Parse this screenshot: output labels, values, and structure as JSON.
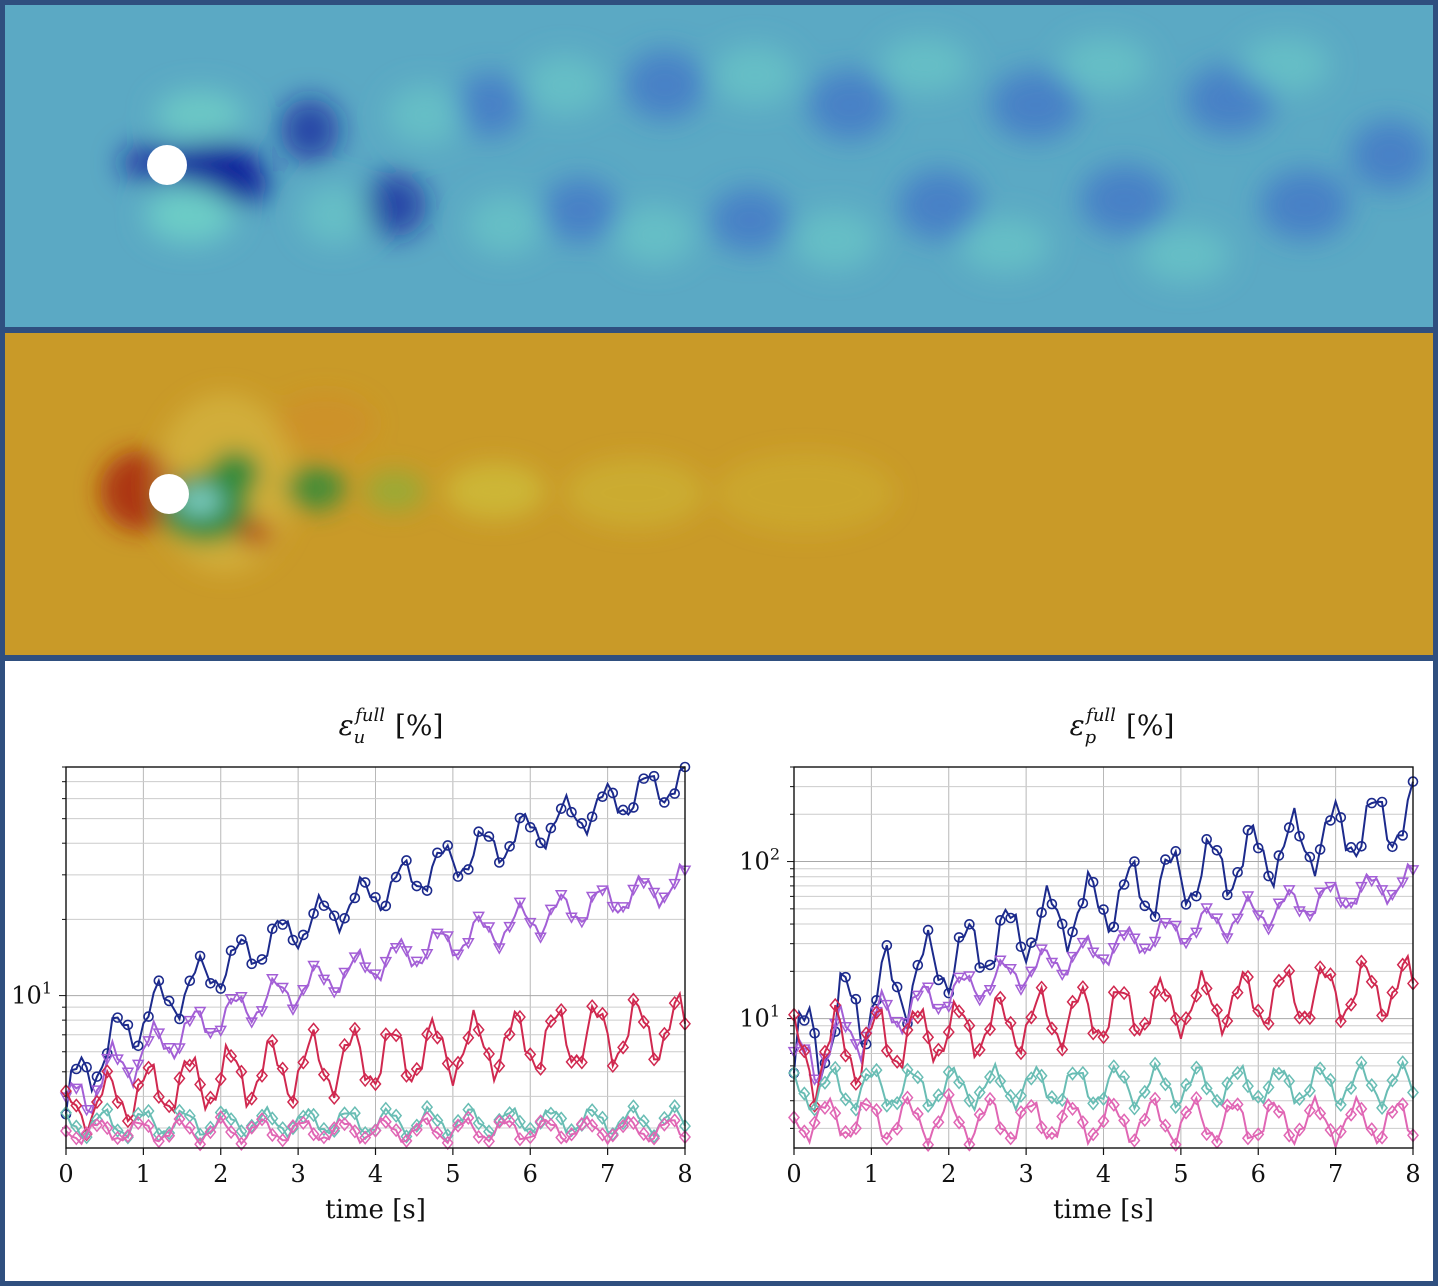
{
  "chart_data": [
    {
      "type": "line",
      "title": "ε_u^full [%]",
      "title_main": "ε",
      "title_sub": "u",
      "title_sup": "full",
      "title_unit": "[%]",
      "xlabel": "time [s]",
      "ylabel": "",
      "xlim": [
        0,
        8
      ],
      "ylim": [
        2.5,
        80
      ],
      "yscale": "log",
      "xticks": [
        "0",
        "1",
        "2",
        "3",
        "4",
        "5",
        "6",
        "7",
        "8"
      ],
      "yticks": [
        {
          "base": "10",
          "exp": "1"
        }
      ],
      "grid": true,
      "series": [
        {
          "color": "#1c2a8c",
          "marker": "circle",
          "start": 3.4,
          "end": 72,
          "amp": 0.07,
          "start_amp": 0.1
        },
        {
          "color": "#a35fd6",
          "marker": "triangle-down",
          "start": 3.2,
          "end": 28,
          "amp": 0.06,
          "start_amp": 0.1
        },
        {
          "color": "#d0284f",
          "marker": "diamond",
          "start": 3.3,
          "end": 7.5,
          "amp": 0.11,
          "start_amp": 0.08
        },
        {
          "color": "#69bdb4",
          "marker": "diamond",
          "start": 3.1,
          "end": 3.2,
          "amp": 0.045,
          "start_amp": 0.05
        },
        {
          "color": "#e066b4",
          "marker": "diamond",
          "start": 2.9,
          "end": 2.95,
          "amp": 0.04,
          "start_amp": 0.04
        }
      ]
    },
    {
      "type": "line",
      "title": "ε_p^full [%]",
      "title_main": "ε",
      "title_sub": "p",
      "title_sup": "full",
      "title_unit": "[%]",
      "xlabel": "time [s]",
      "ylabel": "",
      "xlim": [
        0,
        8
      ],
      "ylim": [
        1.5,
        400
      ],
      "yscale": "log",
      "xticks": [
        "0",
        "1",
        "2",
        "3",
        "4",
        "5",
        "6",
        "7",
        "8"
      ],
      "yticks": [
        {
          "base": "10",
          "exp": "1"
        },
        {
          "base": "10",
          "exp": "2"
        }
      ],
      "grid": true,
      "series": [
        {
          "color": "#1c2a8c",
          "marker": "circle",
          "start": 4.5,
          "end": 200,
          "amp": 0.18,
          "start_amp": 0.3
        },
        {
          "color": "#a35fd6",
          "marker": "triangle-down",
          "start": 4.0,
          "end": 75,
          "amp": 0.09,
          "start_amp": 0.2
        },
        {
          "color": "#d0284f",
          "marker": "diamond",
          "start": 5.0,
          "end": 16,
          "amp": 0.16,
          "start_amp": 0.25
        },
        {
          "color": "#69bdb4",
          "marker": "diamond",
          "start": 3.5,
          "end": 3.8,
          "amp": 0.11,
          "start_amp": 0.12
        },
        {
          "color": "#e066b4",
          "marker": "diamond",
          "start": 2.3,
          "end": 2.2,
          "amp": 0.12,
          "start_amp": 0.12
        }
      ]
    }
  ],
  "fields": {
    "velocity_colors": {
      "background": "#5ba9c4",
      "dark": "#0a1a9a",
      "mid": "#3f6fc8",
      "light": "#6fd0c6"
    },
    "pressure_colors": {
      "background": "#c99a28",
      "high": "#a8230e",
      "green": "#2f8a3a",
      "cyan": "#7fd0c8",
      "yellow": "#cfc23a"
    },
    "obstacle_color": "#ffffff"
  }
}
